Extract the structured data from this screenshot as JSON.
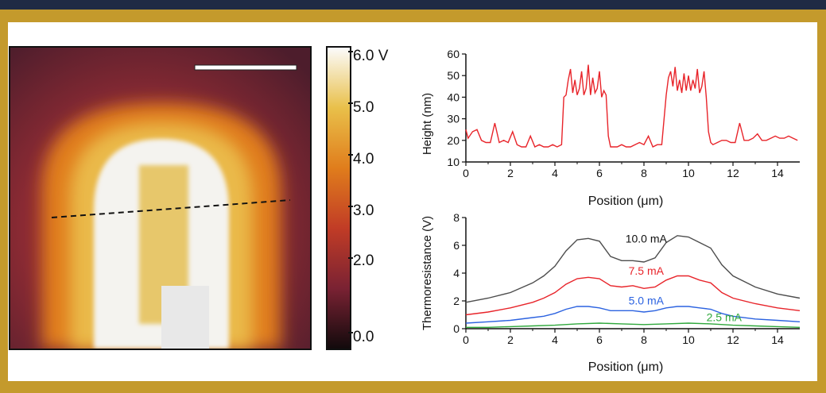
{
  "colorbar": {
    "ticks": [
      "6.0 V",
      "5.0",
      "4.0",
      "3.0",
      "2.0",
      "0.0"
    ],
    "colors": [
      "#fbfbfb",
      "#e9c04a",
      "#e07d1c",
      "#c13c26",
      "#7a2233",
      "#120a0c"
    ]
  },
  "map": {
    "description_colors": {
      "background": "#6b2231",
      "hot": "#f6f6f4",
      "inner": "#e8c35a",
      "edge": "#e3a025"
    },
    "scale_bar": true,
    "line_cut": "dashed"
  },
  "chart_data": [
    {
      "type": "line",
      "xlabel": "Position (μm)",
      "ylabel": "Height (nm)",
      "xlim": [
        0,
        15
      ],
      "ylim": [
        10,
        60
      ],
      "xticks": [
        0,
        2,
        4,
        6,
        8,
        10,
        12,
        14
      ],
      "yticks": [
        10,
        20,
        30,
        40,
        50,
        60
      ],
      "series": [
        {
          "color": "#e8242a",
          "x": [
            0,
            0.1,
            0.3,
            0.5,
            0.7,
            0.9,
            1.1,
            1.3,
            1.5,
            1.7,
            1.9,
            2.1,
            2.3,
            2.5,
            2.7,
            2.9,
            3.1,
            3.3,
            3.5,
            3.7,
            3.9,
            4.1,
            4.3,
            4.4,
            4.5,
            4.6,
            4.7,
            4.8,
            4.9,
            5.0,
            5.1,
            5.2,
            5.3,
            5.4,
            5.5,
            5.6,
            5.7,
            5.8,
            5.9,
            6.0,
            6.1,
            6.2,
            6.3,
            6.4,
            6.5,
            6.6,
            6.8,
            7.0,
            7.2,
            7.4,
            7.6,
            7.8,
            8.0,
            8.2,
            8.4,
            8.6,
            8.8,
            9.0,
            9.1,
            9.2,
            9.3,
            9.4,
            9.5,
            9.6,
            9.7,
            9.8,
            9.9,
            10.0,
            10.1,
            10.2,
            10.3,
            10.4,
            10.5,
            10.6,
            10.7,
            10.8,
            10.9,
            11.0,
            11.1,
            11.3,
            11.5,
            11.7,
            11.9,
            12.1,
            12.3,
            12.5,
            12.7,
            12.9,
            13.1,
            13.3,
            13.5,
            13.7,
            13.9,
            14.1,
            14.3,
            14.5,
            14.7,
            14.9
          ],
          "y": [
            25,
            21,
            24,
            25,
            20,
            19,
            19,
            28,
            19,
            20,
            19,
            24,
            18,
            17,
            17,
            22,
            17,
            18,
            17,
            17,
            18,
            17,
            18,
            40,
            41,
            48,
            53,
            42,
            48,
            41,
            44,
            52,
            41,
            44,
            55,
            41,
            49,
            42,
            44,
            52,
            40,
            43,
            41,
            22,
            17,
            17,
            17,
            18,
            17,
            17,
            18,
            19,
            18,
            22,
            17,
            18,
            18,
            41,
            49,
            52,
            45,
            54,
            43,
            48,
            42,
            51,
            43,
            50,
            43,
            48,
            44,
            53,
            42,
            45,
            52,
            40,
            24,
            19,
            18,
            19,
            20,
            20,
            19,
            19,
            28,
            20,
            20,
            21,
            23,
            20,
            20,
            21,
            22,
            21,
            21,
            22,
            21,
            20
          ]
        }
      ]
    },
    {
      "type": "line",
      "xlabel": "Position (μm)",
      "ylabel": "Thermoresistance (V)",
      "xlim": [
        0,
        15
      ],
      "ylim": [
        0,
        8
      ],
      "xticks": [
        0,
        2,
        4,
        6,
        8,
        10,
        12,
        14
      ],
      "yticks": [
        0,
        2,
        4,
        6,
        8
      ],
      "series": [
        {
          "name": "10.0 mA",
          "color": "#4d4d4d",
          "x": [
            0,
            1,
            2,
            3,
            3.5,
            4,
            4.5,
            5,
            5.5,
            6,
            6.5,
            7,
            7.5,
            8,
            8.5,
            9,
            9.5,
            10,
            10.5,
            11,
            11.5,
            12,
            13,
            14,
            15
          ],
          "y": [
            1.9,
            2.2,
            2.6,
            3.3,
            3.8,
            4.5,
            5.6,
            6.4,
            6.5,
            6.3,
            5.2,
            4.9,
            4.9,
            4.8,
            5.1,
            6.2,
            6.7,
            6.6,
            6.2,
            5.8,
            4.6,
            3.8,
            3.0,
            2.5,
            2.2
          ]
        },
        {
          "name": "7.5 mA",
          "color": "#e8242a",
          "x": [
            0,
            1,
            2,
            3,
            3.5,
            4,
            4.5,
            5,
            5.5,
            6,
            6.5,
            7,
            7.5,
            8,
            8.5,
            9,
            9.5,
            10,
            10.5,
            11,
            11.5,
            12,
            13,
            14,
            15
          ],
          "y": [
            1.0,
            1.2,
            1.5,
            1.9,
            2.2,
            2.6,
            3.2,
            3.6,
            3.7,
            3.6,
            3.1,
            3.0,
            3.1,
            2.9,
            3.0,
            3.5,
            3.8,
            3.8,
            3.5,
            3.3,
            2.6,
            2.2,
            1.8,
            1.5,
            1.3
          ]
        },
        {
          "name": "5.0 mA",
          "color": "#2b62e0",
          "x": [
            0,
            1,
            2,
            3,
            3.5,
            4,
            4.5,
            5,
            5.5,
            6,
            6.5,
            7,
            7.5,
            8,
            8.5,
            9,
            9.5,
            10,
            10.5,
            11,
            11.5,
            12,
            13,
            14,
            15
          ],
          "y": [
            0.4,
            0.5,
            0.6,
            0.8,
            0.9,
            1.1,
            1.4,
            1.6,
            1.6,
            1.5,
            1.3,
            1.3,
            1.3,
            1.2,
            1.3,
            1.5,
            1.6,
            1.6,
            1.5,
            1.4,
            1.1,
            0.9,
            0.7,
            0.6,
            0.5
          ]
        },
        {
          "name": "2.5 mA",
          "color": "#2fa83c",
          "x": [
            0,
            1,
            2,
            3,
            4,
            5,
            6,
            7,
            8,
            9,
            10,
            11,
            12,
            13,
            14,
            15
          ],
          "y": [
            0.1,
            0.1,
            0.15,
            0.2,
            0.25,
            0.35,
            0.4,
            0.35,
            0.3,
            0.35,
            0.4,
            0.35,
            0.25,
            0.2,
            0.15,
            0.1
          ]
        }
      ]
    }
  ]
}
